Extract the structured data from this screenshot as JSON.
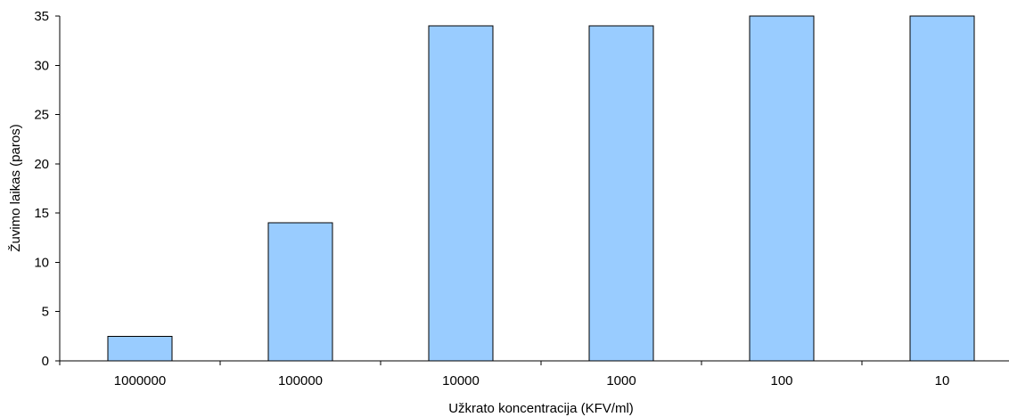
{
  "chart_data": {
    "type": "bar",
    "title": "",
    "xlabel": "Užkrato koncentracija (KFV/ml)",
    "ylabel": "Žuvimo laikas (paros)",
    "categories": [
      "1000000",
      "100000",
      "10000",
      "1000",
      "100",
      "10"
    ],
    "values": [
      2.5,
      14,
      34,
      34,
      35,
      35
    ],
    "ylim": [
      0,
      35
    ],
    "yticks": [
      0,
      5,
      10,
      15,
      20,
      25,
      30,
      35
    ],
    "grid": false,
    "legend": "none",
    "bar_color": "#99ccff"
  }
}
